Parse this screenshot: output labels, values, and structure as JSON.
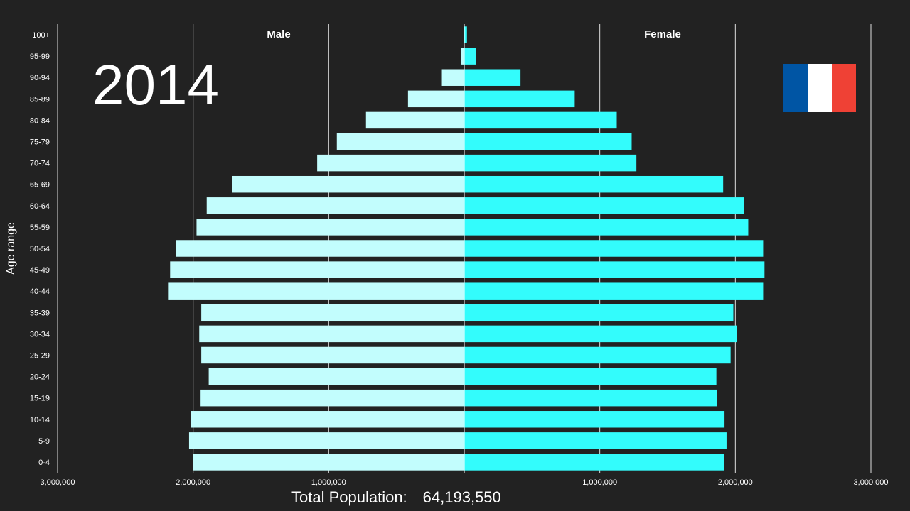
{
  "year": "2014",
  "country_flag": {
    "name": "France",
    "colors": [
      "#0055A4",
      "#FFFFFF",
      "#EF4135"
    ]
  },
  "total_population": {
    "label": "Total Population:",
    "value": "64,193,550"
  },
  "colors": {
    "male": "#C2FDFD",
    "female": "#33FCFC",
    "background": "#222222",
    "grid": "#FFFFFF"
  },
  "chart_data": {
    "type": "bar",
    "orientation": "horizontal",
    "subtype": "population-pyramid",
    "title": "",
    "ylabel": "Age range",
    "xlabel": "",
    "xlim": [
      -3000000,
      3000000
    ],
    "xticks": [
      -3000000,
      -2000000,
      -1000000,
      0,
      1000000,
      2000000,
      3000000
    ],
    "xtick_labels": [
      "3,000,000",
      "2,000,000",
      "1,000,000",
      "0",
      "1,000,000",
      "2,000,000",
      "3,000,000"
    ],
    "categories": [
      "100+",
      "95-99",
      "90-94",
      "85-89",
      "80-84",
      "75-79",
      "70-74",
      "65-69",
      "60-64",
      "55-59",
      "50-54",
      "45-49",
      "40-44",
      "35-39",
      "30-34",
      "25-29",
      "20-24",
      "15-19",
      "10-14",
      "5-9",
      "0-4"
    ],
    "series": [
      {
        "name": "Male",
        "side": "left",
        "values": [
          4000,
          22000,
          165000,
          415000,
          725000,
          940000,
          1085000,
          1715000,
          1900000,
          1975000,
          2125000,
          2170000,
          2180000,
          1940000,
          1955000,
          1940000,
          1885000,
          1945000,
          2015000,
          2030000,
          2000000
        ]
      },
      {
        "name": "Female",
        "side": "right",
        "values": [
          20000,
          85000,
          415000,
          815000,
          1125000,
          1235000,
          1270000,
          1910000,
          2065000,
          2095000,
          2205000,
          2215000,
          2205000,
          1985000,
          2010000,
          1965000,
          1860000,
          1865000,
          1920000,
          1935000,
          1915000
        ]
      }
    ]
  }
}
